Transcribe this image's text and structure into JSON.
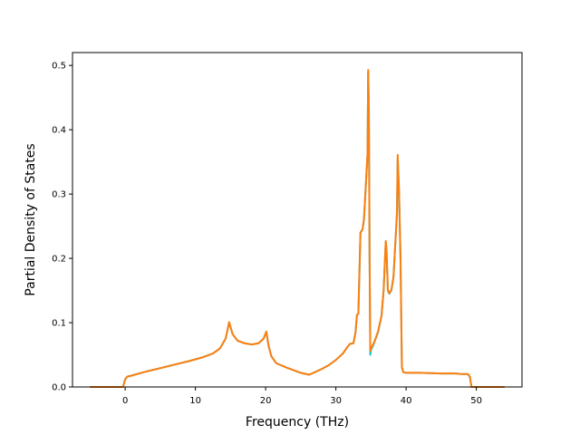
{
  "chart_data": {
    "type": "line",
    "title": "",
    "xlabel": "Frequency (THz)",
    "ylabel": "Partial Density of States",
    "xlim": [
      -7.5,
      56.5
    ],
    "ylim": [
      0.0,
      0.52
    ],
    "xticks": [
      0,
      10,
      20,
      30,
      40,
      50
    ],
    "yticks": [
      0.0,
      0.1,
      0.2,
      0.3,
      0.4,
      0.5
    ],
    "xtick_labels": [
      "0",
      "10",
      "20",
      "30",
      "40",
      "50"
    ],
    "ytick_labels": [
      "0.0",
      "0.1",
      "0.2",
      "0.3",
      "0.4",
      "0.5"
    ],
    "grid": false,
    "legend": "none",
    "series": [
      {
        "color": "#17becf",
        "x": [
          -5.0,
          -0.3,
          0.0,
          0.3,
          1.0,
          3.0,
          6.0,
          9.0,
          11.0,
          12.5,
          13.5,
          14.3,
          14.8,
          15.3,
          16.0,
          17.0,
          18.0,
          19.0,
          19.7,
          20.1,
          20.4,
          20.8,
          21.5,
          23.0,
          25.0,
          26.2,
          27.0,
          28.0,
          29.0,
          30.0,
          31.0,
          31.5,
          32.0,
          32.5,
          32.8,
          33.0,
          33.2,
          33.5,
          33.8,
          34.0,
          34.3,
          34.5,
          34.6,
          34.7,
          34.8,
          34.9,
          35.0,
          35.2,
          35.5,
          36.0,
          36.5,
          36.8,
          37.0,
          37.1,
          37.2,
          37.4,
          37.6,
          37.9,
          38.2,
          38.5,
          38.7,
          38.8,
          39.0,
          39.2,
          39.4,
          39.6,
          40.0,
          42.0,
          45.0,
          47.0,
          48.0,
          48.7,
          48.9,
          49.1,
          49.3,
          50.0,
          52.0,
          54.0
        ],
        "y": [
          0.0,
          0.0,
          0.012,
          0.016,
          0.018,
          0.024,
          0.032,
          0.04,
          0.046,
          0.052,
          0.06,
          0.075,
          0.1,
          0.082,
          0.072,
          0.068,
          0.066,
          0.068,
          0.075,
          0.086,
          0.065,
          0.048,
          0.037,
          0.03,
          0.022,
          0.019,
          0.023,
          0.028,
          0.034,
          0.042,
          0.052,
          0.06,
          0.067,
          0.068,
          0.085,
          0.112,
          0.114,
          0.24,
          0.245,
          0.26,
          0.32,
          0.36,
          0.49,
          0.43,
          0.2,
          0.05,
          0.058,
          0.062,
          0.07,
          0.085,
          0.11,
          0.15,
          0.2,
          0.225,
          0.215,
          0.15,
          0.145,
          0.15,
          0.17,
          0.23,
          0.27,
          0.355,
          0.3,
          0.2,
          0.03,
          0.023,
          0.022,
          0.022,
          0.021,
          0.021,
          0.02,
          0.02,
          0.019,
          0.015,
          0.0,
          0.0,
          0.0,
          0.0
        ]
      },
      {
        "color": "#ff7f0e",
        "x": [
          -5.0,
          -0.3,
          0.0,
          0.3,
          1.0,
          3.0,
          6.0,
          9.0,
          11.0,
          12.5,
          13.5,
          14.3,
          14.8,
          15.3,
          16.0,
          17.0,
          18.0,
          19.0,
          19.7,
          20.1,
          20.4,
          20.8,
          21.5,
          23.0,
          25.0,
          26.2,
          27.0,
          28.0,
          29.0,
          30.0,
          31.0,
          31.5,
          32.0,
          32.5,
          32.8,
          33.0,
          33.2,
          33.5,
          33.8,
          34.0,
          34.3,
          34.5,
          34.6,
          34.7,
          34.8,
          34.9,
          35.0,
          35.2,
          35.5,
          36.0,
          36.5,
          36.8,
          37.0,
          37.1,
          37.2,
          37.4,
          37.6,
          37.9,
          38.2,
          38.5,
          38.7,
          38.8,
          39.0,
          39.2,
          39.4,
          39.6,
          40.0,
          42.0,
          45.0,
          47.0,
          48.0,
          48.7,
          48.9,
          49.1,
          49.3,
          50.0,
          52.0,
          54.0
        ],
        "y": [
          0.0,
          0.0,
          0.012,
          0.016,
          0.018,
          0.024,
          0.032,
          0.04,
          0.046,
          0.052,
          0.06,
          0.075,
          0.101,
          0.082,
          0.072,
          0.068,
          0.066,
          0.068,
          0.075,
          0.086,
          0.065,
          0.048,
          0.037,
          0.03,
          0.022,
          0.019,
          0.023,
          0.028,
          0.034,
          0.042,
          0.052,
          0.06,
          0.067,
          0.068,
          0.085,
          0.112,
          0.114,
          0.24,
          0.245,
          0.262,
          0.322,
          0.362,
          0.493,
          0.432,
          0.205,
          0.056,
          0.06,
          0.064,
          0.071,
          0.086,
          0.111,
          0.151,
          0.202,
          0.227,
          0.216,
          0.151,
          0.146,
          0.151,
          0.171,
          0.231,
          0.272,
          0.361,
          0.302,
          0.201,
          0.031,
          0.023,
          0.022,
          0.022,
          0.021,
          0.021,
          0.02,
          0.02,
          0.019,
          0.015,
          0.0,
          0.0,
          0.0,
          0.0
        ]
      }
    ]
  }
}
